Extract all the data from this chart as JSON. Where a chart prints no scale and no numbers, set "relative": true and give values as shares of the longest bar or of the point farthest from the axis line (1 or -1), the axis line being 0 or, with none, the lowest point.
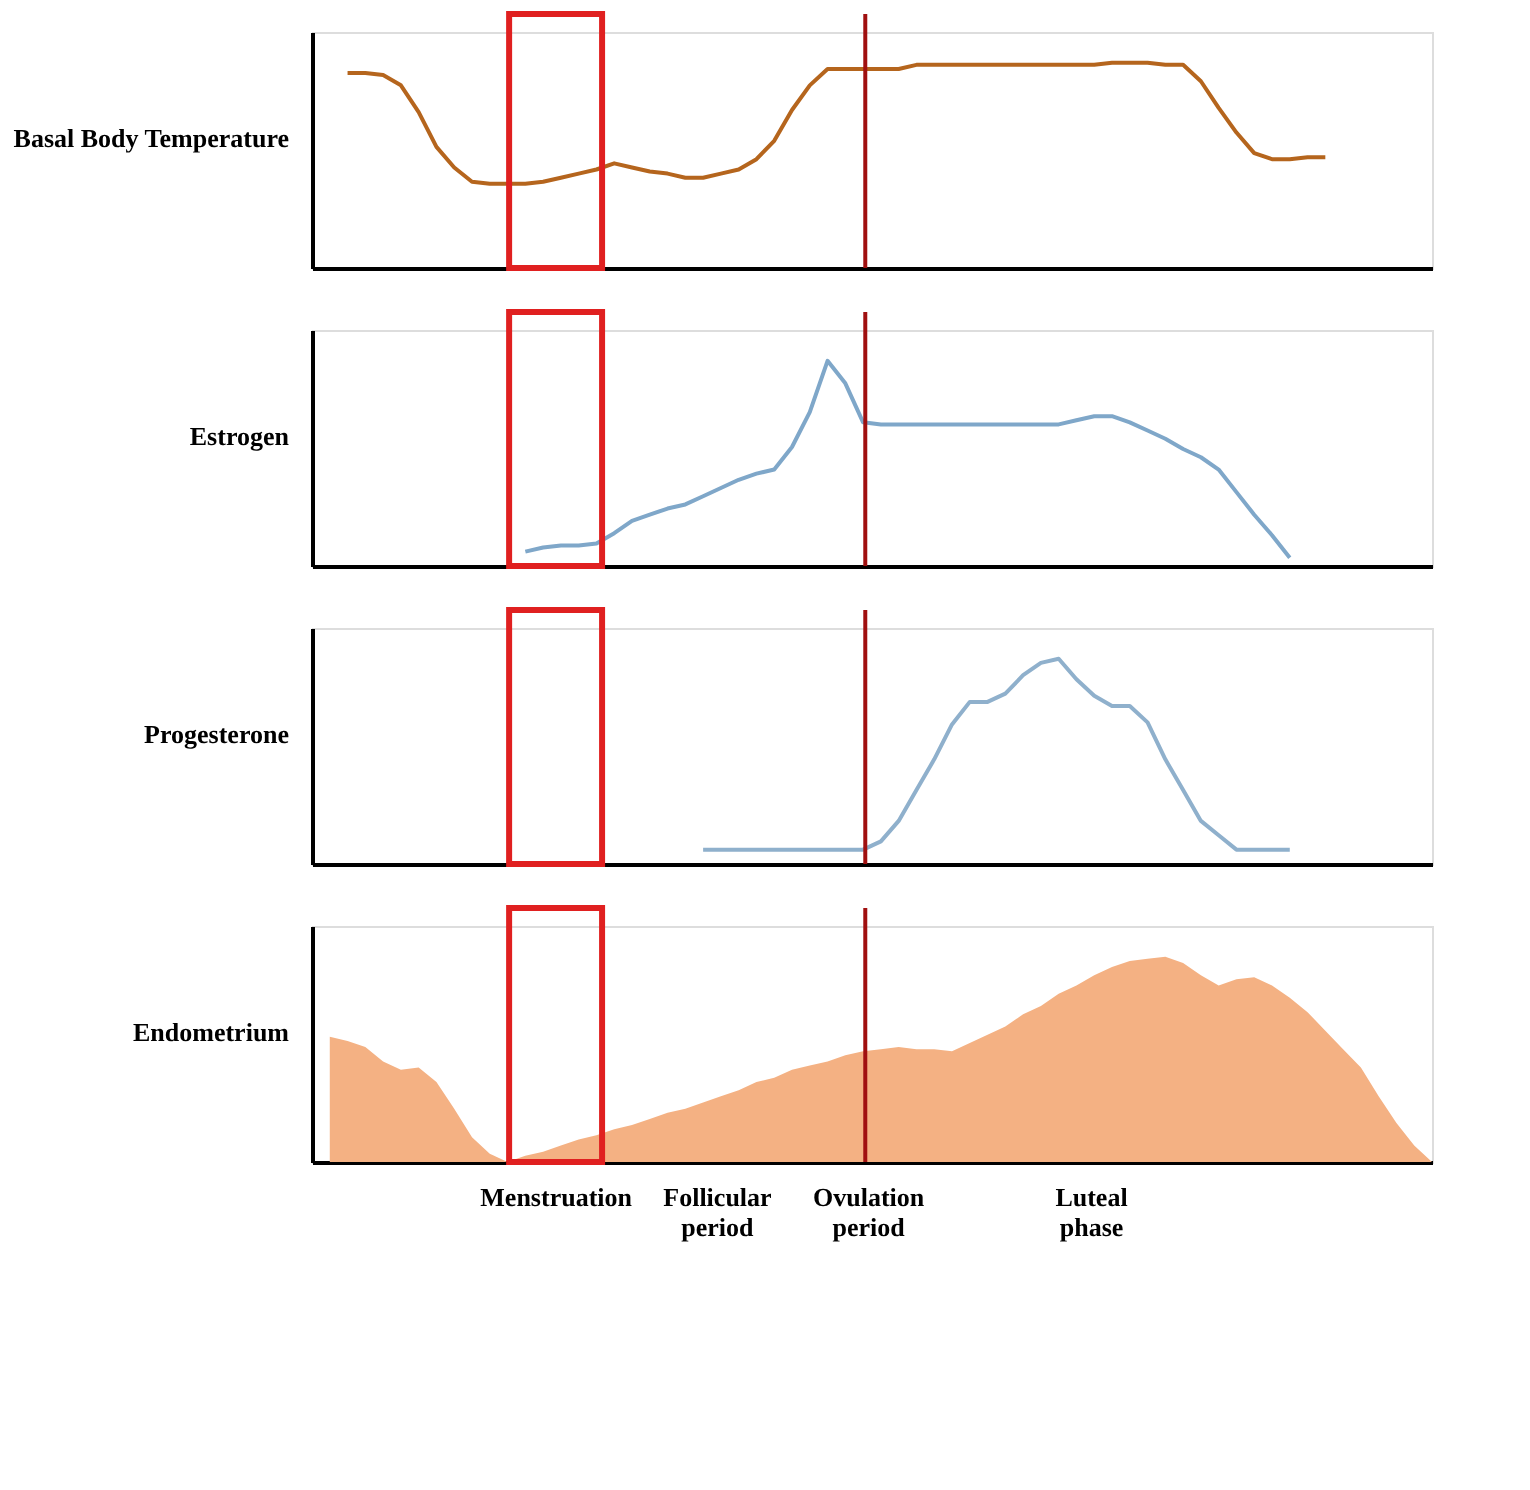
{
  "chart_data": [
    {
      "type": "line",
      "ylabel": "Basal Body Temperature",
      "relative": true,
      "tick_labels": false,
      "grid": false,
      "color": "#b5651d",
      "categories": [
        null,
        null,
        null,
        null,
        null,
        null,
        null,
        null,
        null,
        null,
        null,
        null,
        null,
        null,
        null,
        null,
        null,
        null,
        null,
        null,
        null,
        null,
        null,
        null,
        null,
        null,
        null,
        null,
        null,
        null,
        null,
        null,
        null,
        null,
        null,
        null,
        null,
        null,
        null,
        null,
        null,
        null,
        null,
        null,
        null,
        null,
        null,
        null,
        null,
        null,
        null,
        null,
        null,
        null,
        null,
        null,
        null,
        null,
        null,
        null,
        null,
        null,
        null,
        null
      ],
      "values": [
        null,
        null,
        0.95,
        0.95,
        0.94,
        0.89,
        0.76,
        0.59,
        0.49,
        0.42,
        0.41,
        0.41,
        0.41,
        0.42,
        0.44,
        0.46,
        0.48,
        0.51,
        0.49,
        0.47,
        0.46,
        0.44,
        0.44,
        0.46,
        0.48,
        0.53,
        0.62,
        0.77,
        0.89,
        0.97,
        0.97,
        0.97,
        0.97,
        0.97,
        0.99,
        0.99,
        0.99,
        0.99,
        0.99,
        0.99,
        0.99,
        0.99,
        0.99,
        0.99,
        0.99,
        1,
        1,
        1,
        0.99,
        0.99,
        0.91,
        0.78,
        0.66,
        0.56,
        0.53,
        0.53,
        0.54,
        0.54,
        null,
        null,
        null,
        null,
        null,
        null
      ]
    },
    {
      "type": "line",
      "ylabel": "Estrogen",
      "relative": true,
      "tick_labels": false,
      "grid": false,
      "color": "#7fa7c9",
      "categories": [
        null,
        null,
        null,
        null,
        null,
        null,
        null,
        null,
        null,
        null,
        null,
        null,
        null,
        null,
        null,
        null,
        null,
        null,
        null,
        null,
        null,
        null,
        null,
        null,
        null,
        null,
        null,
        null,
        null,
        null,
        null,
        null,
        null,
        null,
        null,
        null,
        null,
        null,
        null,
        null,
        null,
        null,
        null,
        null,
        null,
        null,
        null,
        null,
        null,
        null,
        null,
        null,
        null,
        null,
        null,
        null,
        null,
        null,
        null,
        null,
        null,
        null,
        null,
        null
      ],
      "values": [
        null,
        null,
        null,
        null,
        null,
        null,
        null,
        null,
        null,
        null,
        null,
        null,
        0.07,
        0.09,
        0.1,
        0.1,
        0.11,
        0.16,
        0.22,
        0.25,
        0.28,
        0.3,
        0.34,
        0.38,
        0.42,
        0.45,
        0.47,
        0.58,
        0.75,
        1,
        0.89,
        0.7,
        0.69,
        0.69,
        0.69,
        0.69,
        0.69,
        0.69,
        0.69,
        0.69,
        0.69,
        0.69,
        0.69,
        0.71,
        0.73,
        0.73,
        0.7,
        0.66,
        0.62,
        0.57,
        0.53,
        0.47,
        0.36,
        0.25,
        0.15,
        0.04,
        null,
        null,
        null,
        null,
        null,
        null,
        null,
        null
      ]
    },
    {
      "type": "line",
      "ylabel": "Progesterone",
      "relative": true,
      "tick_labels": false,
      "grid": false,
      "color": "#8fb0cc",
      "categories": [
        null,
        null,
        null,
        null,
        null,
        null,
        null,
        null,
        null,
        null,
        null,
        null,
        null,
        null,
        null,
        null,
        null,
        null,
        null,
        null,
        null,
        null,
        null,
        null,
        null,
        null,
        null,
        null,
        null,
        null,
        null,
        null,
        null,
        null,
        null,
        null,
        null,
        null,
        null,
        null,
        null,
        null,
        null,
        null,
        null,
        null,
        null,
        null,
        null,
        null,
        null,
        null,
        null,
        null,
        null,
        null,
        null,
        null,
        null,
        null,
        null,
        null,
        null,
        null
      ],
      "values": [
        null,
        null,
        null,
        null,
        null,
        null,
        null,
        null,
        null,
        null,
        null,
        null,
        null,
        null,
        null,
        null,
        null,
        null,
        null,
        null,
        null,
        null,
        0.07,
        0.07,
        0.07,
        0.07,
        0.07,
        0.07,
        0.07,
        0.07,
        0.07,
        0.07,
        0.11,
        0.21,
        0.36,
        0.51,
        0.68,
        0.79,
        0.79,
        0.83,
        0.92,
        0.98,
        1,
        0.9,
        0.82,
        0.77,
        0.77,
        0.69,
        0.51,
        0.36,
        0.21,
        0.14,
        0.07,
        0.07,
        0.07,
        0.07,
        null,
        null,
        null,
        null,
        null,
        null,
        null,
        null
      ]
    },
    {
      "type": "area",
      "ylabel": "Endometrium",
      "relative": true,
      "tick_labels": false,
      "grid": false,
      "color": "#f4b183",
      "categories": [
        null,
        null,
        null,
        null,
        null,
        null,
        null,
        null,
        null,
        null,
        null,
        null,
        null,
        null,
        null,
        null,
        null,
        null,
        null,
        null,
        null,
        null,
        null,
        null,
        null,
        null,
        null,
        null,
        null,
        null,
        null,
        null,
        null,
        null,
        null,
        null,
        null,
        null,
        null,
        null,
        null,
        null,
        null,
        null,
        null,
        null,
        null,
        null,
        null,
        null,
        null,
        null,
        null,
        null,
        null,
        null,
        null,
        null,
        null,
        null,
        null,
        null,
        null,
        null
      ],
      "values": [
        null,
        0.61,
        0.59,
        0.56,
        0.49,
        0.45,
        0.46,
        0.39,
        0.26,
        0.12,
        0.04,
        0,
        0.03,
        0.05,
        0.08,
        0.11,
        0.13,
        0.16,
        0.18,
        0.21,
        0.24,
        0.26,
        0.29,
        0.32,
        0.35,
        0.39,
        0.41,
        0.45,
        0.47,
        0.49,
        0.52,
        0.54,
        0.55,
        0.56,
        0.55,
        0.55,
        0.54,
        0.58,
        0.62,
        0.66,
        0.72,
        0.76,
        0.82,
        0.86,
        0.91,
        0.95,
        0.98,
        0.99,
        1,
        0.97,
        0.91,
        0.86,
        0.89,
        0.9,
        0.86,
        0.8,
        0.73,
        0.64,
        0.55,
        0.46,
        0.32,
        0.19,
        0.08,
        0
      ],
      "annotations": [
        "Menstruation",
        "Follicular period",
        "Ovulation period",
        "Luteal phase"
      ]
    }
  ]
}
